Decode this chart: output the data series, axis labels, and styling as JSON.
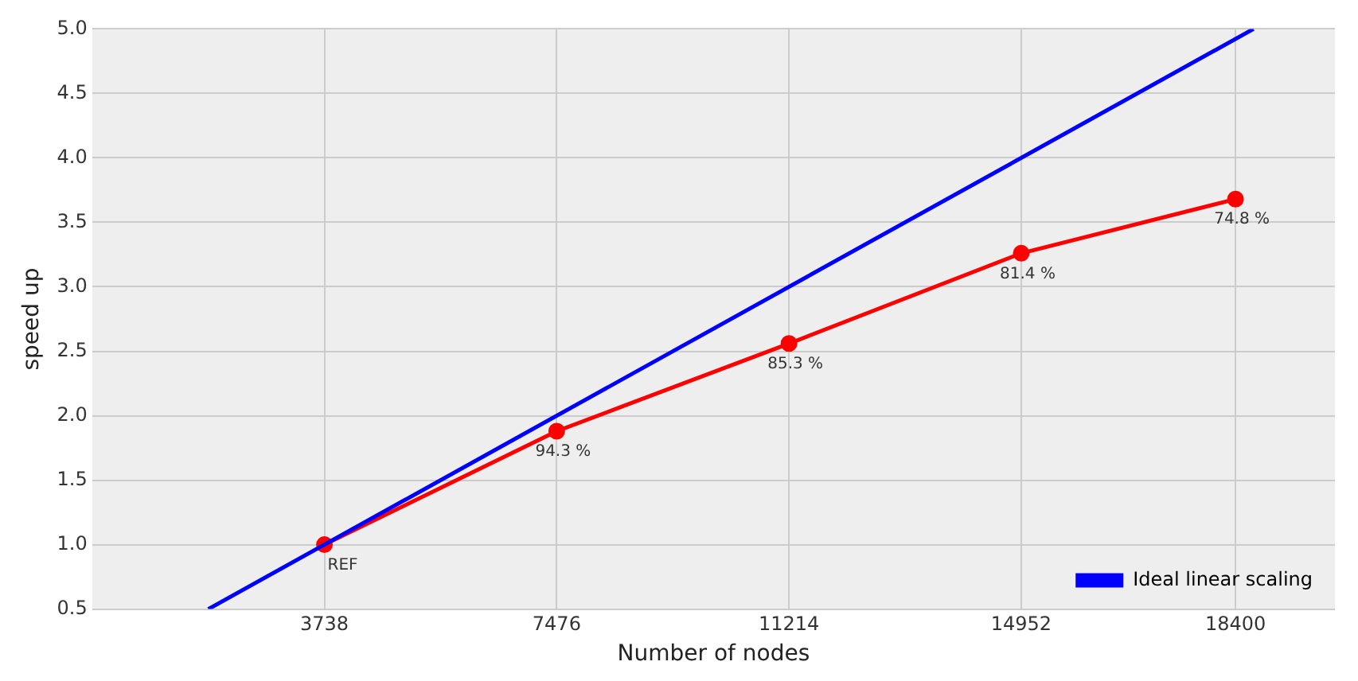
{
  "chart_data": {
    "type": "line",
    "xlabel": "Number of nodes",
    "ylabel": "speed up",
    "xlim": [
      0,
      20000
    ],
    "xticks": [
      3738,
      7476,
      11214,
      14952,
      18400
    ],
    "ylim": [
      0.5,
      5.0
    ],
    "yticks": [
      0.5,
      {
        "value": 1,
        "label": "1.0"
      },
      1.5,
      {
        "value": 2,
        "label": "2.0"
      },
      2.5,
      {
        "value": 3,
        "label": "3.0"
      },
      3.5,
      {
        "value": 4,
        "label": "4.0"
      },
      4.5,
      {
        "value": 5,
        "label": "5.0"
      }
    ],
    "grid": true,
    "legend": "bottom right",
    "series": [
      {
        "name": "Ideal linear scaling",
        "color": "#0000ff",
        "x": [
          1869,
          18690
        ],
        "values": [
          0.5,
          5.0
        ],
        "marker": "none"
      },
      {
        "color": "#ff0000",
        "x": [
          3738,
          7476,
          11214,
          14952,
          18400
        ],
        "values": [
          1.0,
          1.88,
          2.56,
          3.26,
          3.68
        ],
        "marker": "circle"
      }
    ],
    "annotations": [
      {
        "text": "REF",
        "x": 3738,
        "y": 1.0
      },
      {
        "text": "94.3 %",
        "x": 7476,
        "y": 1.88
      },
      {
        "text": "85.3 %",
        "x": 11214,
        "y": 2.56
      },
      {
        "text": "81.4 %",
        "x": 14952,
        "y": 3.26
      },
      {
        "text": "74.8 %",
        "x": 18400,
        "y": 3.68
      }
    ]
  }
}
